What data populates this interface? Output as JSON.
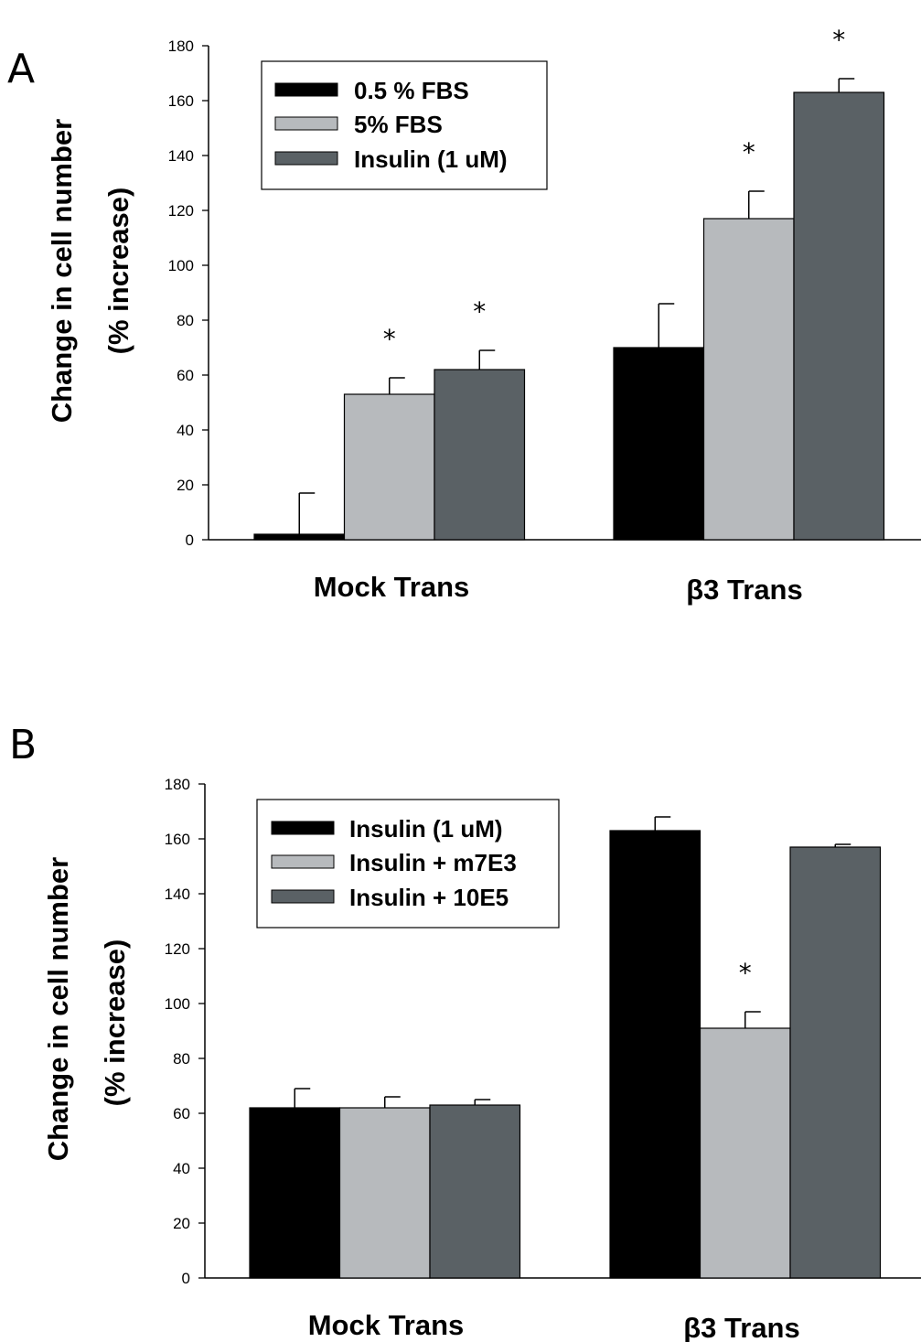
{
  "chart_data": [
    {
      "type": "bar",
      "panel": "A",
      "ylabel_line1": "Change in cell number",
      "ylabel_line2": "(% increase)",
      "ylim": [
        0,
        180
      ],
      "yticks": [
        0,
        20,
        40,
        60,
        80,
        100,
        120,
        140,
        160,
        180
      ],
      "categories": [
        "Mock Trans",
        "β3 Trans"
      ],
      "legend_position": "top-left",
      "grid": false,
      "series": [
        {
          "name": "0.5 % FBS",
          "color": "#000000",
          "values": [
            2,
            70
          ],
          "errors": [
            15,
            16
          ],
          "significant": [
            false,
            false
          ]
        },
        {
          "name": "5% FBS",
          "color": "#b7babd",
          "values": [
            53,
            117
          ],
          "errors": [
            6,
            10
          ],
          "significant": [
            true,
            true
          ]
        },
        {
          "name": "Insulin (1 uM)",
          "color": "#5a6165",
          "values": [
            62,
            163
          ],
          "errors": [
            7,
            5
          ],
          "significant": [
            true,
            true
          ]
        }
      ],
      "significance_marker": "*"
    },
    {
      "type": "bar",
      "panel": "B",
      "ylabel_line1": "Change in cell number",
      "ylabel_line2": "(% increase)",
      "ylim": [
        0,
        180
      ],
      "yticks": [
        0,
        20,
        40,
        60,
        80,
        100,
        120,
        140,
        160,
        180
      ],
      "categories": [
        "Mock Trans",
        "β3 Trans"
      ],
      "legend_position": "top-left",
      "grid": false,
      "series": [
        {
          "name": "Insulin (1 uM)",
          "color": "#000000",
          "values": [
            62,
            163
          ],
          "errors": [
            7,
            5
          ],
          "significant": [
            false,
            false
          ]
        },
        {
          "name": "Insulin + m7E3",
          "color": "#b7babd",
          "values": [
            62,
            91
          ],
          "errors": [
            4,
            6
          ],
          "significant": [
            false,
            true
          ]
        },
        {
          "name": "Insulin + 10E5",
          "color": "#5a6165",
          "values": [
            63,
            157
          ],
          "errors": [
            2,
            1
          ],
          "significant": [
            false,
            false
          ]
        }
      ],
      "significance_marker": "*"
    }
  ]
}
